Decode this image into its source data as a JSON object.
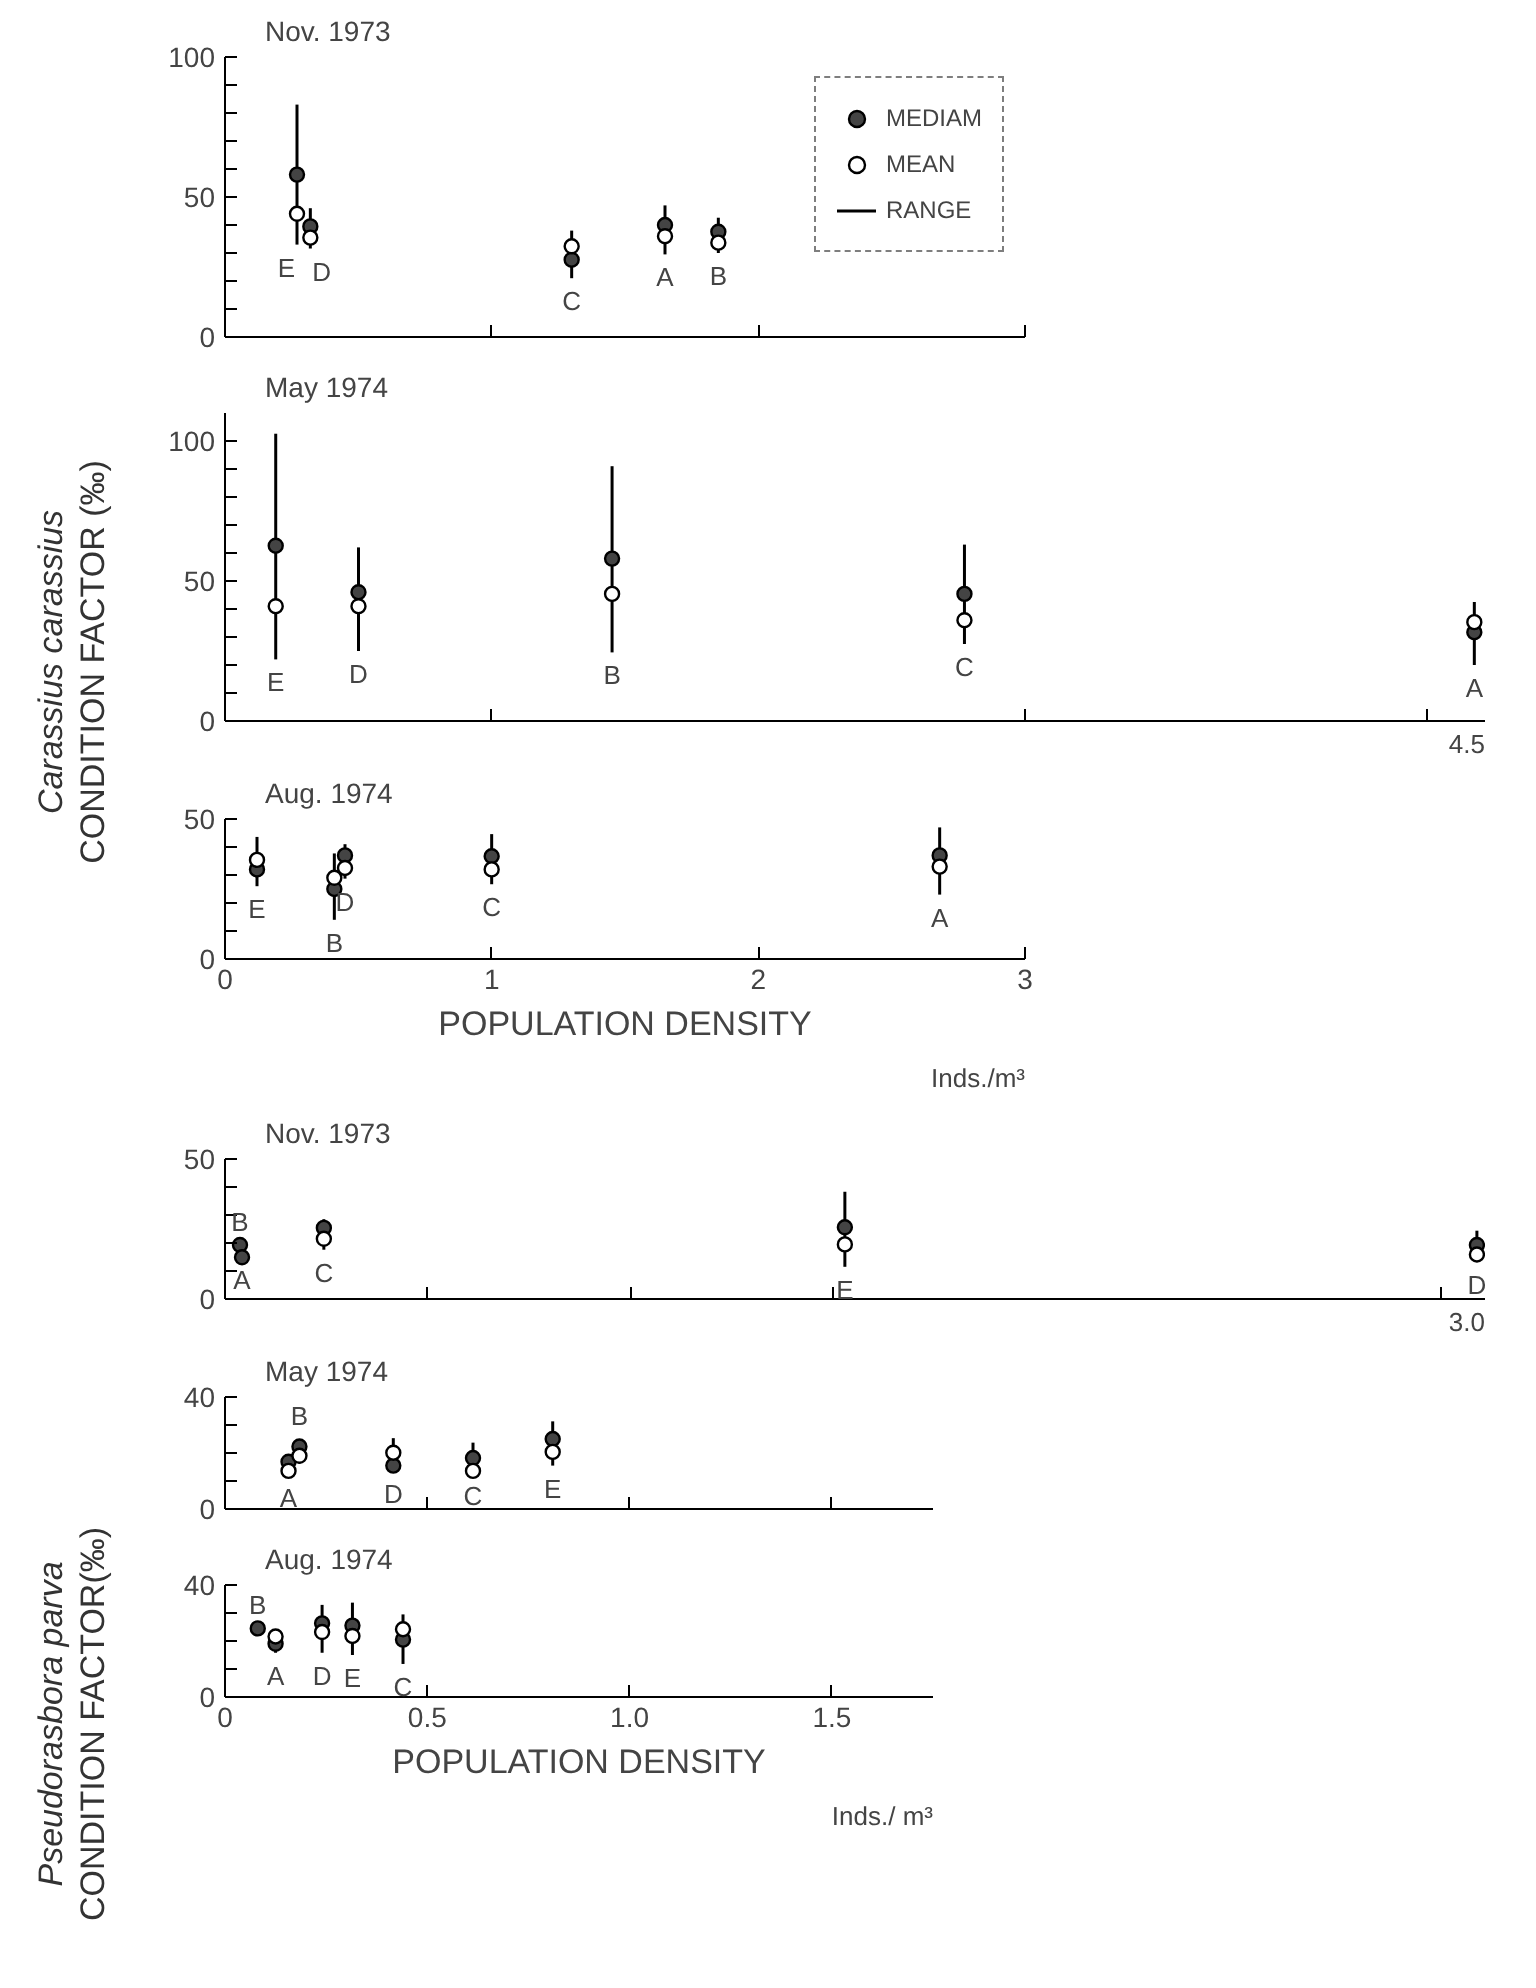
{
  "chart_data": [
    {
      "type": "scatter",
      "title": "Nov. 1973",
      "xlim": [
        0,
        3
      ],
      "xticks": [
        1,
        2,
        3
      ],
      "ylim": [
        0,
        100
      ],
      "yticks": [
        0,
        {
          "value": 10,
          "label": null
        },
        {
          "value": 20,
          "label": null
        },
        {
          "value": 30,
          "label": null
        },
        {
          "value": 40,
          "label": null
        },
        50,
        {
          "value": 60,
          "label": null
        },
        {
          "value": 70,
          "label": null
        },
        {
          "value": 80,
          "label": null
        },
        {
          "value": 90,
          "label": null
        },
        100
      ],
      "tick_labels": "y",
      "marker": "circle",
      "legend": "top right",
      "series": [
        {
          "name": "MEDIAM",
          "color": "#444444",
          "x": [
            0.27,
            0.32,
            1.3,
            1.65,
            1.85
          ],
          "values": [
            58,
            39.5,
            27.6,
            40,
            37.6
          ],
          "errors": [
            [
              33,
              83
            ],
            [
              31.6,
              46
            ],
            [
              21,
              38
            ],
            [
              29.5,
              47
            ],
            [
              30,
              42.6
            ]
          ]
        },
        {
          "name": "MEAN",
          "color": "#ffffff",
          "x": [
            0.27,
            0.32,
            1.3,
            1.65,
            1.85
          ],
          "values": [
            44,
            35.5,
            32.4,
            36,
            33.7
          ]
        }
      ],
      "annotations": [
        {
          "text": "E",
          "x": 0.27,
          "y": 33
        },
        {
          "text": "D",
          "x": 0.32,
          "y": 31.6
        },
        {
          "text": "C",
          "x": 1.3,
          "y": 21
        },
        {
          "text": "A",
          "x": 1.65,
          "y": 29.5
        },
        {
          "text": "B",
          "x": 1.85,
          "y": 30
        },
        "RANGE"
      ]
    },
    {
      "type": "scatter",
      "title": "May 1974",
      "ylabel": "Carassius carassius\nCONDITION FACTOR (‰)",
      "xlim": [
        0,
        4.72
      ],
      "xticks": [
        1,
        3,
        4.5
      ],
      "ylim": [
        0,
        110
      ],
      "yticks": [
        0,
        {
          "value": 10,
          "label": null
        },
        {
          "value": 20,
          "label": null
        },
        {
          "value": 30,
          "label": null
        },
        {
          "value": 40,
          "label": null
        },
        50,
        {
          "value": 60,
          "label": null
        },
        {
          "value": 70,
          "label": null
        },
        {
          "value": 80,
          "label": null
        },
        {
          "value": 90,
          "label": null
        },
        100
      ],
      "tick_labels": "y",
      "marker": "circle",
      "series": [
        {
          "color": "#444444",
          "x": [
            0.19,
            0.5,
            1.45,
            2.77,
            4.68
          ],
          "values": [
            62.6,
            46,
            58,
            45.4,
            31.7
          ],
          "errors": [
            [
              22,
              102.6
            ],
            [
              25,
              62
            ],
            [
              24.5,
              91
            ],
            [
              27.5,
              63
            ],
            [
              20,
              42.5
            ]
          ]
        },
        {
          "color": "#ffffff",
          "x": [
            0.19,
            0.5,
            1.45,
            2.77,
            4.68
          ],
          "values": [
            41,
            41,
            45.4,
            36,
            35.3
          ]
        }
      ],
      "annotations": [
        {
          "text": "E",
          "x": 0.19,
          "y": 22
        },
        {
          "text": "D",
          "x": 0.5,
          "y": 25
        },
        {
          "text": "B",
          "x": 1.45,
          "y": 24.5
        },
        {
          "text": "C",
          "x": 2.77,
          "y": 27.5
        },
        {
          "text": "A",
          "x": 4.68,
          "y": 20
        },
        "4.5"
      ]
    },
    {
      "type": "scatter",
      "title": "Aug. 1974",
      "xlabel": "POPULATION DENSITY",
      "xlim": [
        0,
        3
      ],
      "xticks": [
        0,
        1,
        2,
        3
      ],
      "ylim": [
        0,
        50
      ],
      "yticks": [
        0,
        {
          "value": 10,
          "label": null
        },
        {
          "value": 20,
          "label": null
        },
        {
          "value": 30,
          "label": null
        },
        {
          "value": 40,
          "label": null
        },
        50
      ],
      "marker": "circle",
      "series": [
        {
          "color": "#444444",
          "x": [
            0.12,
            0.41,
            0.45,
            1.0,
            2.68
          ],
          "values": [
            32,
            25,
            37,
            36.7,
            37
          ],
          "errors": [
            [
              26,
              43.6
            ],
            [
              14,
              37.7
            ],
            [
              28.7,
              41
            ],
            [
              26.7,
              44.6
            ],
            [
              23,
              47
            ]
          ]
        },
        {
          "color": "#ffffff",
          "x": [
            0.12,
            0.41,
            0.45,
            1.0,
            2.68
          ],
          "values": [
            35.4,
            29,
            32.5,
            32,
            33
          ]
        }
      ],
      "annotations": [
        {
          "text": "E",
          "x": 0.12,
          "y": 26
        },
        {
          "text": "B",
          "x": 0.41,
          "y": 14
        },
        {
          "text": "D",
          "x": 0.45,
          "y": 28.7
        },
        {
          "text": "C",
          "x": 1.0,
          "y": 26.7
        },
        {
          "text": "A",
          "x": 2.68,
          "y": 23
        },
        "Inds./m³"
      ]
    },
    {
      "type": "scatter",
      "title": "Nov. 1973",
      "xlim": [
        0,
        3.11
      ],
      "xticks": [
        0.5,
        1,
        1.5,
        3
      ],
      "ylim": [
        0,
        50
      ],
      "yticks": [
        0,
        {
          "value": 10,
          "label": null
        },
        {
          "value": 20,
          "label": null
        },
        {
          "value": 30,
          "label": null
        },
        {
          "value": 40,
          "label": null
        },
        50
      ],
      "tick_labels": "y",
      "marker": "circle",
      "series": [
        {
          "color": "#444444",
          "x": [
            0.037,
            0.042,
            0.244,
            1.53,
            3.09
          ],
          "values": [
            19.3,
            14.9,
            25.4,
            25.6,
            19.3
          ],
          "errors": [
            null,
            null,
            [
              17.6,
              28.5
            ],
            [
              11.5,
              38.3
            ],
            [
              13.2,
              24.4
            ]
          ]
        },
        {
          "color": "#ffffff",
          "x": [
            0.244,
            1.53,
            3.09
          ],
          "values": [
            21.5,
            19.5,
            15.9
          ]
        }
      ],
      "annotations": [
        {
          "text": "B",
          "x": 0.037,
          "y": 19.3
        },
        {
          "text": "A",
          "x": 0.042,
          "y": 14.9
        },
        {
          "text": "C",
          "x": 0.244,
          "y": 17.6
        },
        {
          "text": "E",
          "x": 1.53,
          "y": 11.5
        },
        {
          "text": "D",
          "x": 3.09,
          "y": 13.2
        },
        "3.0"
      ]
    },
    {
      "type": "scatter",
      "title": "May 1974",
      "ylabel": "Pseudorasbora parva\nCONDITION FACTOR(‰)",
      "xlim": [
        0,
        1.75
      ],
      "xticks": [
        0.5,
        1,
        1.5
      ],
      "ylim": [
        0,
        40
      ],
      "yticks": [
        0,
        {
          "value": 10,
          "label": null
        },
        {
          "value": 20,
          "label": null
        },
        {
          "value": 30,
          "label": null
        },
        40
      ],
      "tick_labels": "y",
      "marker": "circle",
      "series": [
        {
          "color": "#444444",
          "x": [
            0.157,
            0.184,
            0.416,
            0.613,
            0.81
          ],
          "values": [
            16.9,
            22.3,
            15.5,
            18.2,
            25
          ],
          "errors": [
            [
              12,
              19.6
            ],
            [
              16.3,
              25
            ],
            [
              13.6,
              25.3
            ],
            [
              13,
              23.7
            ],
            [
              15.5,
              31.3
            ]
          ]
        },
        {
          "color": "#ffffff",
          "x": [
            0.157,
            0.184,
            0.416,
            0.613,
            0.81
          ],
          "values": [
            13.6,
            19,
            20.1,
            13.6,
            20.4
          ]
        }
      ],
      "annotations": [
        {
          "text": "B",
          "x": 0.184,
          "y": 25
        },
        {
          "text": "A",
          "x": 0.157,
          "y": 12
        },
        {
          "text": "D",
          "x": 0.416,
          "y": 13.6
        },
        {
          "text": "C",
          "x": 0.613,
          "y": 13
        },
        {
          "text": "E",
          "x": 0.81,
          "y": 15.5
        }
      ]
    },
    {
      "type": "scatter",
      "title": "Aug. 1974",
      "xlabel": "POPULATION DENSITY",
      "xlim": [
        0,
        1.75
      ],
      "xticks": [
        0,
        0.5,
        {
          "value": 1,
          "label": "1.0"
        },
        1.5
      ],
      "ylim": [
        0,
        40
      ],
      "yticks": [
        0,
        {
          "value": 10,
          "label": null
        },
        {
          "value": 20,
          "label": null
        },
        {
          "value": 30,
          "label": null
        },
        40
      ],
      "marker": "circle",
      "series": [
        {
          "color": "#444444",
          "x": [
            0.081,
            0.125,
            0.24,
            0.315,
            0.44
          ],
          "values": [
            24.5,
            19,
            26.3,
            25.5,
            20.5
          ],
          "errors": [
            null,
            [
              15.8,
              23.7
            ],
            [
              15.8,
              32.9
            ],
            [
              15,
              33.7
            ],
            [
              11.8,
              29.5
            ]
          ]
        },
        {
          "color": "#ffffff",
          "x": [
            0.125,
            0.24,
            0.315,
            0.44
          ],
          "values": [
            21.6,
            23.2,
            21.8,
            24.2
          ]
        }
      ],
      "annotations": [
        {
          "text": "B",
          "x": 0.081,
          "y": 24.5
        },
        {
          "text": "A",
          "x": 0.125,
          "y": 15.8
        },
        {
          "text": "D",
          "x": 0.24,
          "y": 15.8
        },
        {
          "text": "E",
          "x": 0.315,
          "y": 15
        },
        {
          "text": "C",
          "x": 0.44,
          "y": 11.8
        },
        "Inds./ m³"
      ]
    }
  ]
}
